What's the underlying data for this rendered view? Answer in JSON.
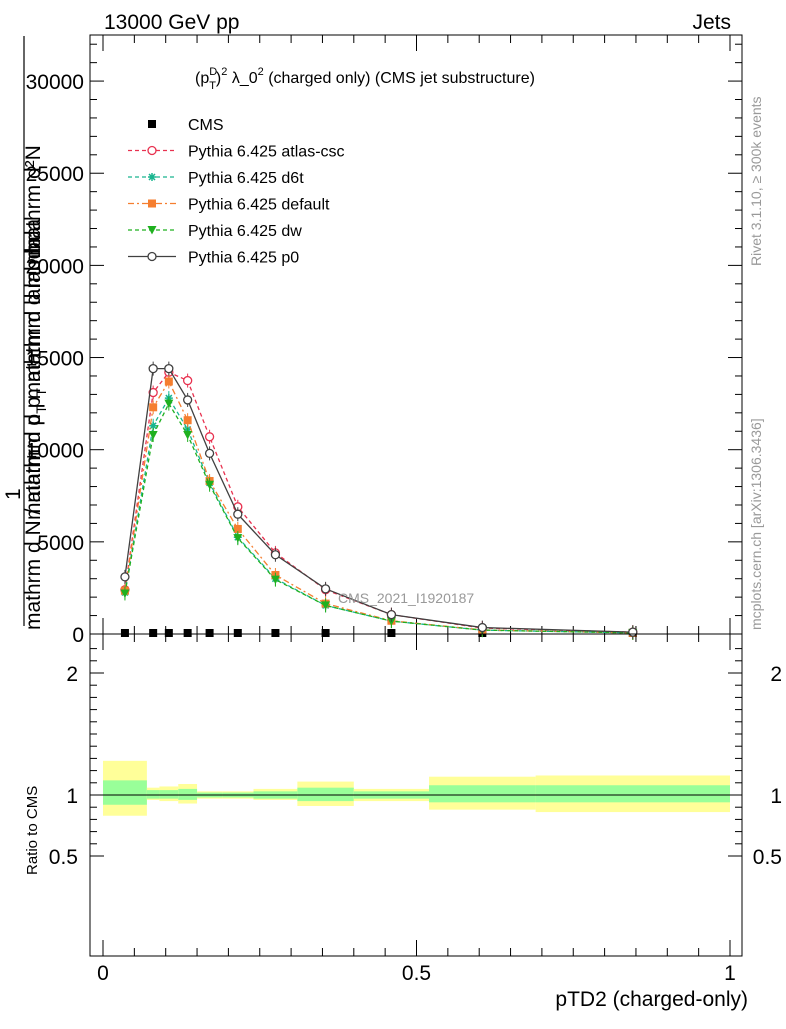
{
  "header": {
    "left": "13000 GeV pp",
    "right": "Jets"
  },
  "side_texts": {
    "rivet": "Rivet 3.1.10, ≥ 300k events",
    "mcplots": "mcplots.cern.ch [arXiv:1306.3436]"
  },
  "colors": {
    "cms": "#000000",
    "atlas_csc": "#e8314f",
    "d6t": "#19b58f",
    "default": "#f57e2f",
    "dw": "#1fb01f",
    "p0": "#404040",
    "band_inner": "#99ff99",
    "band_outer": "#ffff99"
  },
  "chart_data": [
    {
      "type": "line",
      "title_parts": {
        "prefix": "(p",
        "sub": "T",
        "sup_d": "D",
        "rest": ")",
        "sup2": "2",
        "mid": " λ_0",
        "sup3": "2",
        "tail": " (charged only) (CMS jet substructure)"
      },
      "ylabel_lines": [
        "mathrm d²N",
        "mathrm d p_T mathrm d lambda",
        "1",
        "mathrm d N / mathrm d p_T mathrm d lambda"
      ],
      "ylabel_display": {
        "num_top": "mathrm d²N",
        "den_top": "mathrm d p",
        "den_top_sub": "T",
        "den_top_tail": " mathrm d lambda",
        "one": "1",
        "den_bottom": "mathrm d N / mathrm d p",
        "den_bottom_sub": "T",
        "den_bottom_tail": " mathrm d lambda"
      },
      "xlim": [
        0,
        1
      ],
      "ylim": [
        0,
        32500
      ],
      "yticks": [
        0,
        5000,
        10000,
        15000,
        20000,
        25000,
        30000
      ],
      "ytick_labels": [
        "0",
        "5000",
        "10000",
        "15000",
        "20000",
        "25000",
        "30000"
      ],
      "watermark": "CMS_2021_I1920187",
      "x": [
        0.035,
        0.08,
        0.105,
        0.135,
        0.17,
        0.215,
        0.275,
        0.355,
        0.46,
        0.605,
        0.845
      ],
      "series": [
        {
          "name": "CMS",
          "key": "cms",
          "marker": "square",
          "dash": "",
          "values": [
            0,
            0,
            0,
            0,
            0,
            0,
            0,
            0,
            0,
            0,
            0
          ],
          "line": false
        },
        {
          "name": "Pythia 6.425 atlas-csc",
          "key": "atlas_csc",
          "marker": "circle-open",
          "dash": "4,3",
          "values": [
            2400,
            13100,
            14200,
            13750,
            10700,
            6900,
            4400,
            2400,
            1050,
            320,
            100
          ]
        },
        {
          "name": "Pythia 6.425 d6t",
          "key": "d6t",
          "marker": "star",
          "dash": "4,3",
          "values": [
            2250,
            11300,
            12800,
            11100,
            8200,
            5250,
            3000,
            1550,
            700,
            210,
            60
          ]
        },
        {
          "name": "Pythia 6.425 default",
          "key": "default",
          "marker": "square",
          "dash": "6,3,2,3",
          "values": [
            2350,
            12300,
            13700,
            11600,
            8300,
            5700,
            3200,
            1650,
            720,
            220,
            60
          ]
        },
        {
          "name": "Pythia 6.425 dw",
          "key": "dw",
          "marker": "triangle-down",
          "dash": "4,3",
          "values": [
            2200,
            10800,
            12500,
            10800,
            8100,
            5200,
            2950,
            1550,
            700,
            210,
            60
          ]
        },
        {
          "name": "Pythia 6.425 p0",
          "key": "p0",
          "marker": "circle-open",
          "dash": "",
          "values": [
            3100,
            14400,
            14400,
            12700,
            9800,
            6500,
            4300,
            2450,
            1050,
            350,
            100
          ]
        }
      ]
    },
    {
      "type": "area",
      "ylabel": "Ratio to CMS",
      "xlabel": "pTD2 (charged-only)",
      "xlim": [
        0,
        1
      ],
      "ylim": [
        0.3,
        2.3
      ],
      "yticks": [
        0.5,
        1,
        2
      ],
      "ytick_labels": [
        "0.5",
        "1",
        "2"
      ],
      "xticks": [
        0,
        0.5,
        1
      ],
      "xtick_labels": [
        "0",
        "0.5",
        "1"
      ],
      "bins": [
        {
          "lo": 0.0,
          "hi": 0.07,
          "inner": [
            0.92,
            1.12
          ],
          "outer": [
            0.83,
            1.28
          ]
        },
        {
          "lo": 0.07,
          "hi": 0.09,
          "inner": [
            0.97,
            1.04
          ],
          "outer": [
            0.96,
            1.06
          ]
        },
        {
          "lo": 0.09,
          "hi": 0.12,
          "inner": [
            0.97,
            1.04
          ],
          "outer": [
            0.95,
            1.07
          ]
        },
        {
          "lo": 0.12,
          "hi": 0.15,
          "inner": [
            0.96,
            1.05
          ],
          "outer": [
            0.93,
            1.09
          ]
        },
        {
          "lo": 0.15,
          "hi": 0.19,
          "inner": [
            0.98,
            1.02
          ],
          "outer": [
            0.97,
            1.03
          ]
        },
        {
          "lo": 0.19,
          "hi": 0.24,
          "inner": [
            0.98,
            1.02
          ],
          "outer": [
            0.97,
            1.03
          ]
        },
        {
          "lo": 0.24,
          "hi": 0.31,
          "inner": [
            0.97,
            1.03
          ],
          "outer": [
            0.96,
            1.05
          ]
        },
        {
          "lo": 0.31,
          "hi": 0.4,
          "inner": [
            0.95,
            1.06
          ],
          "outer": [
            0.91,
            1.11
          ]
        },
        {
          "lo": 0.4,
          "hi": 0.52,
          "inner": [
            0.97,
            1.03
          ],
          "outer": [
            0.95,
            1.05
          ]
        },
        {
          "lo": 0.52,
          "hi": 0.69,
          "inner": [
            0.94,
            1.08
          ],
          "outer": [
            0.88,
            1.15
          ]
        },
        {
          "lo": 0.69,
          "hi": 1.0,
          "inner": [
            0.94,
            1.08
          ],
          "outer": [
            0.86,
            1.16
          ]
        }
      ]
    }
  ]
}
